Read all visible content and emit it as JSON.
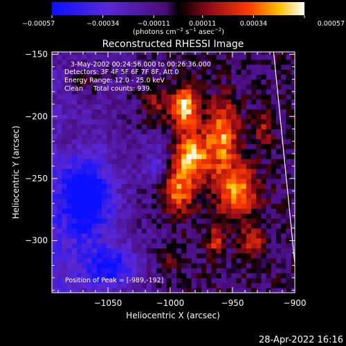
{
  "chart_data": {
    "type": "heatmap",
    "title": "Reconstructed RHESSI Image",
    "xlabel": "Heliocentric X (arcsec)",
    "ylabel": "Heliocentric Y (arcsec)",
    "xlim": [
      -1095,
      -900
    ],
    "ylim": [
      -342,
      -148
    ],
    "x_ticks": [
      -1050,
      -1000,
      -950,
      -900
    ],
    "y_ticks": [
      -150,
      -200,
      -250,
      -300
    ],
    "x_tick_labels": [
      "−1050",
      "−1000",
      "−950",
      "−900"
    ],
    "y_tick_labels": [
      "−150",
      "−200",
      "−250",
      "−300"
    ],
    "colorbar": {
      "min": -0.00057,
      "max": 0.00057,
      "ticks": [
        -0.00057,
        -0.00034,
        -0.00011,
        0.00011,
        0.00034,
        0.00057
      ],
      "tick_labels": [
        "−0.00057",
        "−0.00034",
        "−0.00011",
        "0.00011",
        "0.00034",
        "0.00057"
      ],
      "units_prefix": "(photons cm",
      "units_sup1": "−2",
      "units_mid1": " s",
      "units_sup2": "−1",
      "units_mid2": " asec",
      "units_sup3": "−2",
      "units_suffix": ")",
      "stops": [
        {
          "pos": 0.0,
          "color": "#0a10ff"
        },
        {
          "pos": 0.22,
          "color": "#5a28d8"
        },
        {
          "pos": 0.45,
          "color": "#4a0c78"
        },
        {
          "pos": 0.5,
          "color": "#000000"
        },
        {
          "pos": 0.62,
          "color": "#8c0a1a"
        },
        {
          "pos": 0.78,
          "color": "#ff3a00"
        },
        {
          "pos": 0.9,
          "color": "#ffc000"
        },
        {
          "pos": 1.0,
          "color": "#ffffff"
        }
      ]
    },
    "annotations": [
      "3-May-2002 00:24:56.000 to 00:26:36.000",
      "Detectors: 3F 4F 5F 6F 7F 8F, Att 0",
      "Energy Range: 12.0 - 25.0 keV",
      "Clean     Total counts: 939."
    ],
    "peak_label": "Position of Peak = [-989,-192]",
    "peak": [
      -989,
      -192
    ],
    "limb_line": [
      [
        -917,
        -148
      ],
      [
        -900,
        -318
      ]
    ],
    "hot_regions": [
      {
        "x": -988,
        "y": -192,
        "amp": 1.0,
        "sx": 7,
        "sy": 11
      },
      {
        "x": -983,
        "y": -232,
        "amp": 0.95,
        "sx": 10,
        "sy": 14
      },
      {
        "x": -958,
        "y": -215,
        "amp": 0.8,
        "sx": 9,
        "sy": 20
      },
      {
        "x": -946,
        "y": -260,
        "amp": 0.75,
        "sx": 12,
        "sy": 15
      },
      {
        "x": -995,
        "y": -260,
        "amp": 0.7,
        "sx": 10,
        "sy": 12
      },
      {
        "x": -963,
        "y": -300,
        "amp": 0.6,
        "sx": 5,
        "sy": 7
      },
      {
        "x": -1068,
        "y": -172,
        "amp": 0.3,
        "sx": 8,
        "sy": 7
      },
      {
        "x": -1012,
        "y": -190,
        "amp": 0.4,
        "sx": 8,
        "sy": 10
      },
      {
        "x": -1003,
        "y": -315,
        "amp": 0.32,
        "sx": 6,
        "sy": 5
      },
      {
        "x": -925,
        "y": -210,
        "amp": 0.4,
        "sx": 5,
        "sy": 10
      },
      {
        "x": -935,
        "y": -300,
        "amp": 0.5,
        "sx": 7,
        "sy": 8
      },
      {
        "x": -1080,
        "y": -215,
        "amp": 0.25,
        "sx": 6,
        "sy": 8
      }
    ],
    "blue_regions": [
      {
        "x": -1068,
        "y": -265,
        "amp": -0.95,
        "sx": 14,
        "sy": 22
      },
      {
        "x": -1048,
        "y": -320,
        "amp": -0.7,
        "sx": 14,
        "sy": 10
      },
      {
        "x": -1010,
        "y": -240,
        "amp": -0.4,
        "sx": 8,
        "sy": 12
      }
    ]
  },
  "footer": {
    "timestamp": "28-Apr-2022 16:16"
  }
}
